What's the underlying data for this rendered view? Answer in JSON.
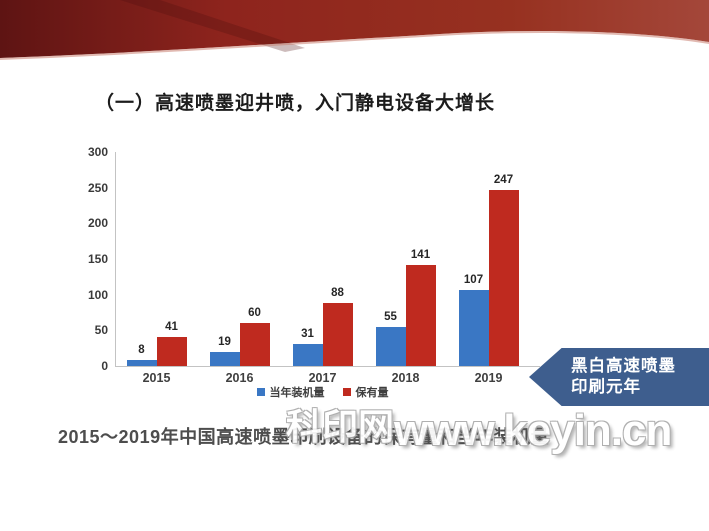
{
  "slide": {
    "title": "（一）高速喷墨迎井喷，入门静电设备大增长",
    "caption": "2015～2019年中国高速喷墨印刷设备的保有量和当年装机量"
  },
  "banner": {
    "color_dark": "#5e1413",
    "color_main": "#8e241d",
    "color_light": "#a4473a"
  },
  "chart_data": {
    "type": "bar",
    "categories": [
      "2015",
      "2016",
      "2017",
      "2018",
      "2019"
    ],
    "series": [
      {
        "name": "当年装机量",
        "color": "#3a77c4",
        "values": [
          8,
          19,
          31,
          55,
          107
        ]
      },
      {
        "name": "保有量",
        "color": "#bf2a1f",
        "values": [
          41,
          60,
          88,
          141,
          247
        ]
      }
    ],
    "title": "",
    "xlabel": "",
    "ylabel": "",
    "ylim": [
      0,
      300
    ],
    "yticks": [
      0,
      50,
      100,
      150,
      200,
      250,
      300
    ],
    "grid": false,
    "legend_position": "bottom",
    "value_labels": true
  },
  "callout": {
    "line1": "黑白高速喷墨",
    "line2": "印刷元年",
    "color": "#3e5e8e"
  },
  "watermark": {
    "site_name": "科印网",
    "domain": "www.keyin.cn"
  }
}
